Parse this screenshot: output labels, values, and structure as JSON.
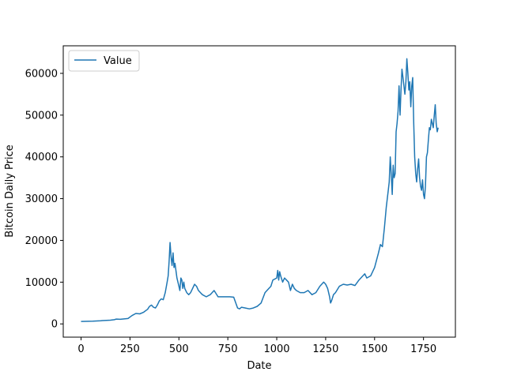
{
  "chart_data": {
    "type": "line",
    "title": "",
    "xlabel": "Date",
    "ylabel": "Bitcoin Daily Price",
    "xlim": [
      -91,
      1913
    ],
    "ylim": [
      -3171,
      66600
    ],
    "x_ticks": [
      0,
      250,
      500,
      750,
      1000,
      1250,
      1500,
      1750
    ],
    "y_ticks": [
      0,
      10000,
      20000,
      30000,
      40000,
      50000,
      60000
    ],
    "x_tick_labels": [
      "0",
      "250",
      "500",
      "750",
      "1000",
      "1250",
      "1500",
      "1750"
    ],
    "y_tick_labels": [
      "0",
      "10000",
      "20000",
      "30000",
      "40000",
      "50000",
      "60000"
    ],
    "grid": false,
    "legend": {
      "position": "top-left",
      "entries": [
        "Value"
      ]
    },
    "series": [
      {
        "name": "Value",
        "color": "#1f77b4",
        "x": [
          0,
          20,
          40,
          60,
          80,
          100,
          110,
          130,
          150,
          170,
          180,
          200,
          220,
          240,
          260,
          280,
          300,
          320,
          340,
          350,
          360,
          370,
          380,
          390,
          400,
          410,
          420,
          430,
          440,
          445,
          450,
          455,
          460,
          465,
          470,
          475,
          480,
          490,
          500,
          505,
          510,
          515,
          520,
          525,
          530,
          540,
          550,
          560,
          570,
          580,
          590,
          600,
          610,
          620,
          640,
          660,
          680,
          700,
          720,
          740,
          760,
          780,
          800,
          810,
          820,
          840,
          860,
          880,
          900,
          920,
          940,
          960,
          970,
          980,
          1000,
          1005,
          1010,
          1015,
          1020,
          1030,
          1040,
          1050,
          1060,
          1070,
          1080,
          1090,
          1100,
          1120,
          1140,
          1160,
          1180,
          1200,
          1220,
          1240,
          1250,
          1260,
          1270,
          1275,
          1280,
          1290,
          1300,
          1320,
          1340,
          1360,
          1380,
          1400,
          1420,
          1440,
          1450,
          1460,
          1480,
          1500,
          1520,
          1530,
          1540,
          1550,
          1560,
          1570,
          1575,
          1580,
          1585,
          1590,
          1595,
          1600,
          1605,
          1610,
          1615,
          1620,
          1625,
          1630,
          1635,
          1640,
          1645,
          1650,
          1655,
          1660,
          1665,
          1670,
          1675,
          1680,
          1685,
          1690,
          1695,
          1700,
          1705,
          1710,
          1715,
          1720,
          1725,
          1730,
          1735,
          1740,
          1745,
          1750,
          1755,
          1760,
          1765,
          1770,
          1775,
          1780,
          1785,
          1790,
          1795,
          1800,
          1805,
          1810,
          1815,
          1820,
          1825
        ],
        "values": [
          600,
          610,
          630,
          650,
          700,
          750,
          800,
          850,
          900,
          1000,
          1150,
          1100,
          1200,
          1300,
          2000,
          2500,
          2400,
          2800,
          3500,
          4200,
          4500,
          4000,
          3800,
          4500,
          5500,
          6000,
          5800,
          7500,
          10000,
          11500,
          15000,
          19500,
          16000,
          14000,
          17000,
          13500,
          14500,
          11000,
          9000,
          8000,
          11000,
          10500,
          8500,
          10000,
          8500,
          7500,
          7000,
          7500,
          8500,
          9500,
          9000,
          8000,
          7500,
          7000,
          6500,
          7000,
          8000,
          6500,
          6500,
          6500,
          6500,
          6400,
          3800,
          3600,
          4000,
          3800,
          3600,
          3800,
          4200,
          5000,
          7500,
          8500,
          9000,
          10500,
          11000,
          12800,
          10500,
          12500,
          11500,
          10000,
          11000,
          10500,
          10000,
          8000,
          9500,
          8500,
          8000,
          7500,
          7500,
          8000,
          7000,
          7500,
          9000,
          10000,
          9500,
          8500,
          6500,
          5000,
          5500,
          7000,
          7500,
          9000,
          9500,
          9300,
          9500,
          9200,
          10500,
          11500,
          12000,
          11000,
          11500,
          13500,
          17000,
          19000,
          18500,
          23000,
          28000,
          32000,
          34000,
          40000,
          36000,
          31000,
          38000,
          35000,
          36000,
          46000,
          48000,
          51000,
          57000,
          50000,
          56000,
          61000,
          59000,
          57000,
          55000,
          58000,
          63500,
          60000,
          56000,
          58000,
          52000,
          57000,
          59000,
          48000,
          40000,
          36000,
          34000,
          37000,
          39500,
          35000,
          33000,
          32000,
          34500,
          31000,
          30000,
          33000,
          40000,
          41000,
          44000,
          47000,
          46500,
          49000,
          48000,
          47000,
          50000,
          52500,
          48000,
          46000,
          47000
        ]
      }
    ]
  }
}
